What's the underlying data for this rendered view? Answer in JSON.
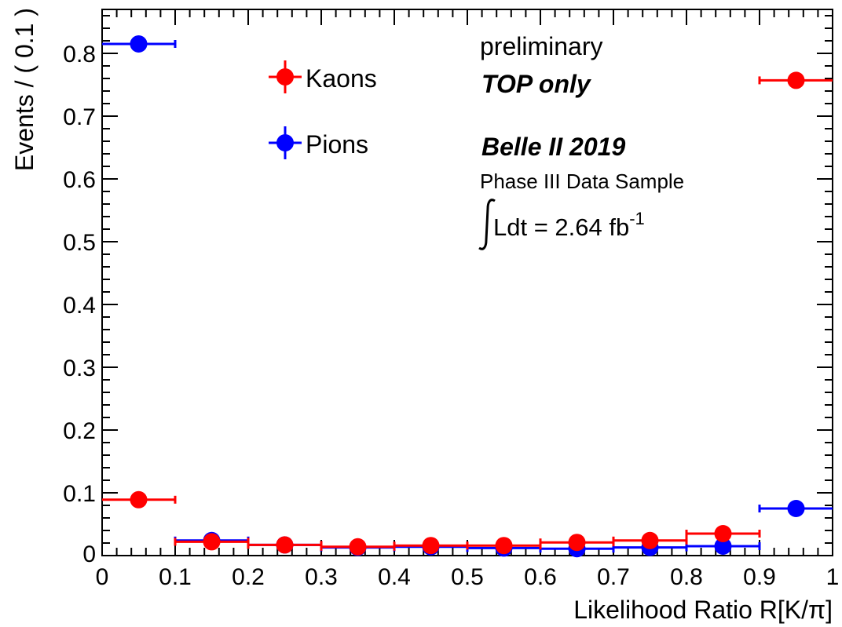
{
  "chart_data": {
    "type": "scatter",
    "xlabel": "Likelihood Ratio R[K/π]",
    "ylabel": "Events / ( 0.1 )",
    "xlim": [
      0,
      1
    ],
    "ylim": [
      0,
      0.87
    ],
    "x_ticks": [
      "0",
      "0.1",
      "0.2",
      "0.3",
      "0.4",
      "0.5",
      "0.6",
      "0.7",
      "0.8",
      "0.9",
      "1"
    ],
    "y_ticks": [
      "0",
      "0.1",
      "0.2",
      "0.3",
      "0.4",
      "0.5",
      "0.6",
      "0.7",
      "0.8"
    ],
    "x_bin_half_width": 0.05,
    "x": [
      0.05,
      0.15,
      0.25,
      0.35,
      0.45,
      0.55,
      0.65,
      0.75,
      0.85,
      0.95
    ],
    "series": [
      {
        "name": "Pions",
        "color": "#0000ff",
        "values": [
          0.815,
          0.024,
          0.017,
          0.013,
          0.014,
          0.012,
          0.011,
          0.013,
          0.015,
          0.075
        ]
      },
      {
        "name": "Kaons",
        "color": "#ff0000",
        "values": [
          0.089,
          0.022,
          0.017,
          0.014,
          0.016,
          0.016,
          0.021,
          0.024,
          0.035,
          0.757
        ]
      }
    ],
    "legend": {
      "placement": "top-left",
      "entries": [
        "Kaons",
        "Pions"
      ]
    },
    "annotations": {
      "preliminary": "preliminary",
      "top_only": "TOP only",
      "experiment": "Belle II 2019",
      "sample": "Phase III Data Sample",
      "lumi_text": "Ldt = 2.64 fb",
      "lumi_exp": "-1"
    },
    "grid": false
  }
}
